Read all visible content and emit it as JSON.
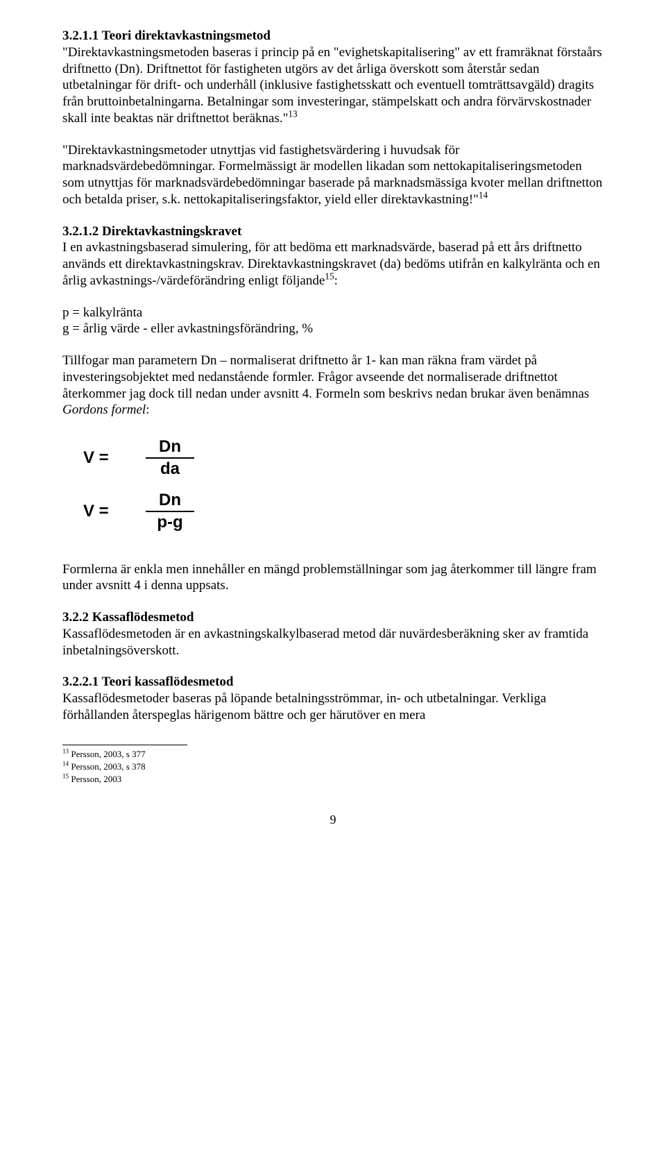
{
  "s1": {
    "heading": "3.2.1.1 Teori direktavkastningsmetod",
    "p1a": "\"Direktavkastningsmetoden baseras i princip på en \"evighetskapitalisering\" av ett framräknat förstaårs driftnetto (Dn).",
    "p1b": "Driftnettot för fastigheten utgörs av det årliga överskott som återstår sedan utbetalningar för drift- och underhåll (inklusive fastighetsskatt och eventuell tomträttsavgäld) dragits från bruttoinbetalningarna.",
    "p1c": "Betalningar som investeringar, stämpelskatt och andra förvärvskostnader skall inte beaktas när driftnettot beräknas.\"",
    "fn13": "13",
    "p2a": "\"Direktavkastningsmetoder utnyttjas vid fastighetsvärdering i huvudsak för marknadsvärdebedömningar. Formelmässigt är modellen likadan som nettokapitaliseringsmetoden som utnyttjas för marknadsvärdebedömningar baserade på marknadsmässiga kvoter mellan driftnetton och betalda priser, s.k. nettokapitaliseringsfaktor, yield eller direktavkastning!\"",
    "fn14": "14"
  },
  "s2": {
    "heading": "3.2.1.2 Direktavkastningskravet",
    "p1a": "I en avkastningsbaserad simulering, för att bedöma ett marknadsvärde, baserad på ett års driftnetto används ett direktavkastningskrav. Direktavkastningskravet (da) bedöms utifrån en kalkylränta och en årlig avkastnings-/värdeförändring enligt följande",
    "fn15": "15",
    "p1b": ":",
    "defs_p": "p = kalkylränta",
    "defs_g": "g = årlig värde - eller avkastningsförändring, %",
    "p2a": "Tillfogar man parametern Dn – normaliserat driftnetto år 1- kan man räkna fram värdet på investeringsobjektet med nedanstående formler. Frågor avseende det normaliserade driftnettot återkommer jag dock till nedan under avsnitt 4. Formeln som beskrivs nedan brukar även benämnas ",
    "p2b": "Gordons formel",
    "p2c": ":"
  },
  "formulas": {
    "f1": {
      "lhs": "V =",
      "num": "Dn",
      "den": "da"
    },
    "f2": {
      "lhs": "V =",
      "num": "Dn",
      "den": "p-g"
    }
  },
  "s3": {
    "p1": "Formlerna är enkla men innehåller en mängd problemställningar som jag återkommer till längre fram under avsnitt 4 i denna uppsats."
  },
  "s4": {
    "heading": "3.2.2 Kassaflödesmetod",
    "p1": "Kassaflödesmetoden är en avkastningskalkylbaserad metod där nuvärdesberäkning sker av framtida inbetalningsöverskott."
  },
  "s5": {
    "heading": "3.2.2.1 Teori kassaflödesmetod",
    "p1": "Kassaflödesmetoder baseras på löpande betalningsströmmar, in- och utbetalningar. Verkliga förhållanden återspeglas härigenom bättre och ger härutöver en mera"
  },
  "footnotes": {
    "f13": "Persson, 2003, s 377",
    "f14": "Persson, 2003, s 378",
    "f15": "Persson, 2003",
    "n13": "13",
    "n14": "14",
    "n15": "15"
  },
  "pagenum": "9"
}
